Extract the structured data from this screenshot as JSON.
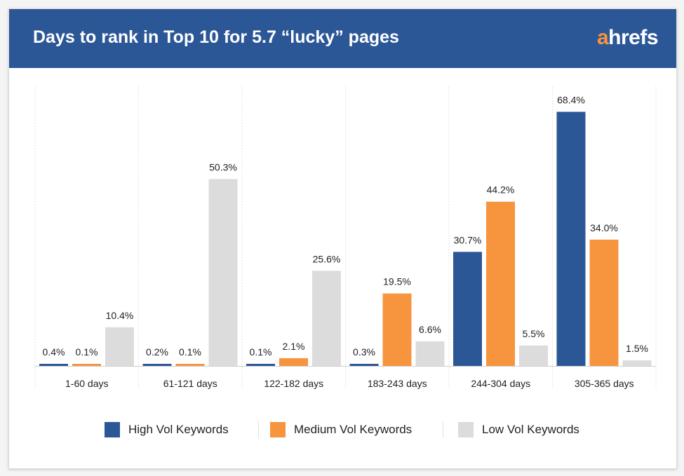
{
  "header": {
    "title": "Days to rank in Top 10 for 5.7 “lucky” pages",
    "logo_a": "a",
    "logo_rest": "hrefs"
  },
  "colors": {
    "header_bg": "#2b5797",
    "high": "#2b5797",
    "medium": "#f7943e",
    "low": "#dcdcdc"
  },
  "chart_data": {
    "type": "bar",
    "title": "Days to rank in Top 10 for 5.7 “lucky” pages",
    "xlabel": "",
    "ylabel": "",
    "ylim": [
      0,
      72
    ],
    "grid": true,
    "legend": "bottom",
    "categories": [
      "1-60 days",
      "61-121 days",
      "122-182 days",
      "183-243 days",
      "244-304 days",
      "305-365 days"
    ],
    "series": [
      {
        "name": "High Vol Keywords",
        "color": "#2b5797",
        "values": [
          0.4,
          0.2,
          0.1,
          0.3,
          30.7,
          68.4
        ],
        "labels": [
          "0.4%",
          "0.2%",
          "0.1%",
          "0.3%",
          "30.7%",
          "68.4%"
        ]
      },
      {
        "name": "Medium Vol Keywords",
        "color": "#f7943e",
        "values": [
          0.1,
          0.1,
          2.1,
          19.5,
          44.2,
          34.0
        ],
        "labels": [
          "0.1%",
          "0.1%",
          "2.1%",
          "19.5%",
          "44.2%",
          "34.0%"
        ]
      },
      {
        "name": "Low Vol Keywords",
        "color": "#dcdcdc",
        "values": [
          10.4,
          50.3,
          25.6,
          6.6,
          5.5,
          1.5
        ],
        "labels": [
          "10.4%",
          "50.3%",
          "25.6%",
          "6.6%",
          "5.5%",
          "1.5%"
        ]
      }
    ]
  }
}
